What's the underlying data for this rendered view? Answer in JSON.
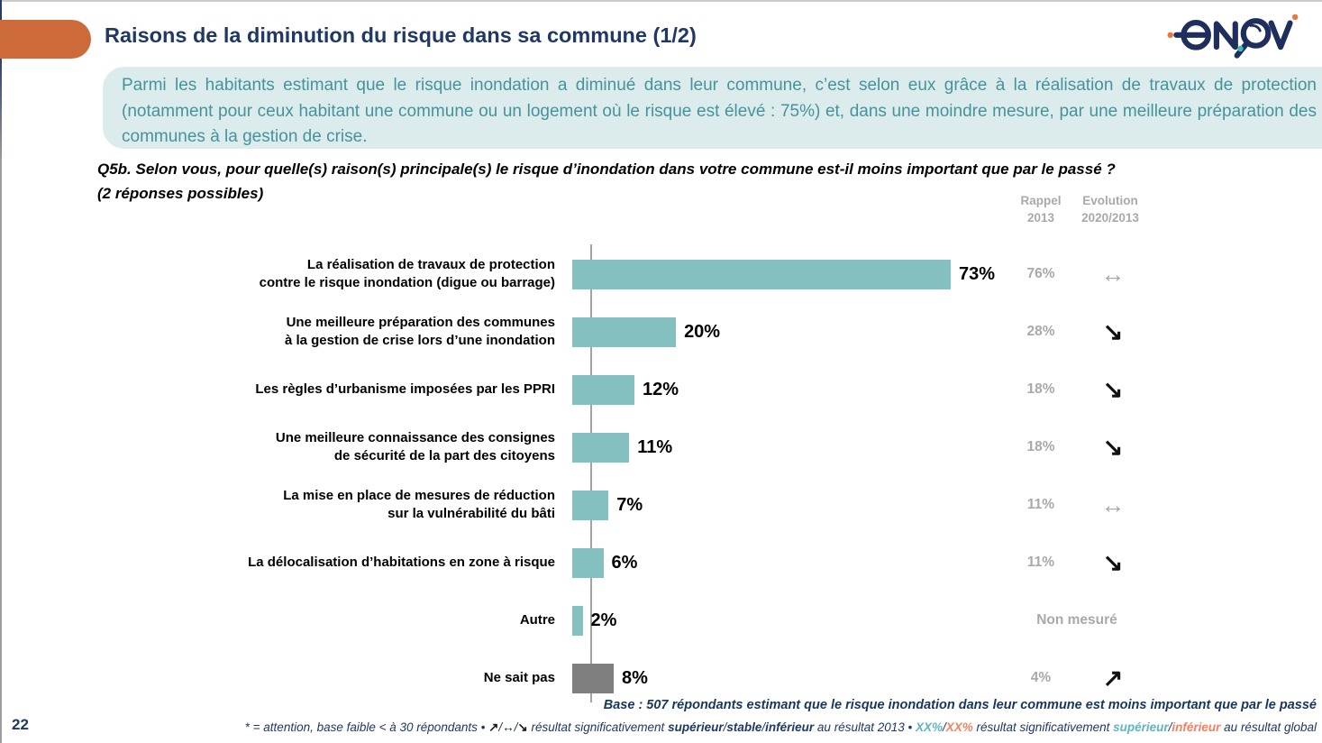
{
  "slide": {
    "title": "Raisons de la diminution du risque dans sa commune (1/2)",
    "page_number": "22",
    "logo_name": "enov-logo"
  },
  "summary": "Parmi les habitants estimant que le risque inondation a diminué dans leur commune, c’est selon eux grâce à la réalisation de travaux de protection (notamment pour ceux habitant une commune ou un logement où le risque est élevé : 75%) et, dans une moindre mesure, par une meilleure préparation des communes à la gestion de crise.",
  "question": {
    "line1": "Q5b. Selon vous, pour quelle(s) raison(s) principale(s) le risque d’inondation dans votre commune est-il moins important que par le passé ?",
    "line2": "(2 réponses possibles)"
  },
  "columns": {
    "rappel": "Rappel\n2013",
    "evolution": "Evolution\n2020/2013"
  },
  "chart_data": {
    "type": "bar",
    "orientation": "horizontal",
    "unit": "%",
    "xlim": [
      0,
      80
    ],
    "grid": false,
    "categories": [
      "La réalisation de travaux de protection\ncontre le risque inondation (digue ou barrage)",
      "Une meilleure préparation des communes\nà la gestion de crise lors d’une inondation",
      "Les règles d’urbanisme imposées par les PPRI",
      "Une meilleure connaissance des consignes\nde sécurité de la part des citoyens",
      "La mise en place de mesures de réduction\nsur la vulnérabilité du bâti",
      "La délocalisation d’habitations en zone à risque",
      "Autre",
      "Ne sait pas"
    ],
    "values": [
      73,
      20,
      12,
      11,
      7,
      6,
      2,
      8
    ],
    "value_labels": [
      "73%",
      "20%",
      "12%",
      "11%",
      "7%",
      "6%",
      "2%",
      "8%"
    ],
    "rappel_2013": [
      "76%",
      "28%",
      "18%",
      "18%",
      "11%",
      "11%",
      "Non mesuré",
      "4%"
    ],
    "evolution_2020_2013": [
      "stable",
      "down",
      "down",
      "down",
      "stable",
      "down",
      null,
      "up"
    ],
    "bar_colors": [
      "#85c0c0",
      "#85c0c0",
      "#85c0c0",
      "#85c0c0",
      "#85c0c0",
      "#85c0c0",
      "#85c0c0",
      "#7f7f7f"
    ]
  },
  "arrow_glyphs": {
    "stable": "↔",
    "down": "↘",
    "up": "↗"
  },
  "footnotes": {
    "base": "Base : 507 répondants estimant que le risque inondation dans leur commune est moins important que par le passé",
    "legend_parts": [
      {
        "t": "* = attention, base faible < à 30 répondants • ",
        "b": false,
        "c": "navy"
      },
      {
        "t": "↗",
        "b": true,
        "c": "dark"
      },
      {
        "t": "/",
        "b": false,
        "c": "navy"
      },
      {
        "t": "↔",
        "b": true,
        "c": "dark"
      },
      {
        "t": "/",
        "b": false,
        "c": "navy"
      },
      {
        "t": "↘",
        "b": true,
        "c": "dark"
      },
      {
        "t": " résultat significativement ",
        "b": false,
        "c": "navy"
      },
      {
        "t": "supérieur",
        "b": true,
        "c": "navy"
      },
      {
        "t": "/",
        "b": false,
        "c": "navy"
      },
      {
        "t": "stable",
        "b": true,
        "c": "navy"
      },
      {
        "t": "/",
        "b": false,
        "c": "navy"
      },
      {
        "t": "inférieur",
        "b": true,
        "c": "navy"
      },
      {
        "t": " au résultat 2013 • ",
        "b": false,
        "c": "navy"
      },
      {
        "t": "XX%",
        "b": true,
        "c": "teal"
      },
      {
        "t": "/",
        "b": false,
        "c": "navy"
      },
      {
        "t": "XX%",
        "b": true,
        "c": "orange"
      },
      {
        "t": " résultat significativement ",
        "b": false,
        "c": "navy"
      },
      {
        "t": "supérieur",
        "b": true,
        "c": "teal"
      },
      {
        "t": "/",
        "b": false,
        "c": "navy"
      },
      {
        "t": "inférieur",
        "b": true,
        "c": "orange"
      },
      {
        "t": " au résultat global",
        "b": false,
        "c": "navy"
      }
    ]
  },
  "colors": {
    "title_navy": "#1f3864",
    "pill_orange": "#cd6a39",
    "band_bg": "#dcecec",
    "band_text": "#45939c",
    "bar_teal": "#85c0c0",
    "bar_gray": "#7f7f7f",
    "muted_gray": "#a9a9a9",
    "legend_teal": "#5fb4bf",
    "legend_orange": "#f0825f"
  }
}
